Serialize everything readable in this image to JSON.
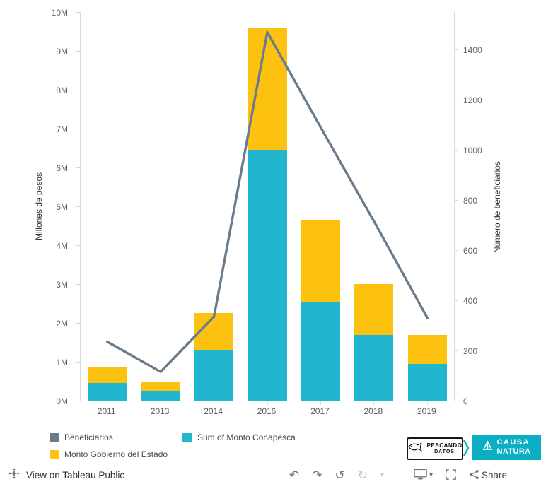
{
  "colors": {
    "bar_conapesca": "#20B6CE",
    "bar_estado": "#FDC110",
    "line_beneficiarios": "#6A7B8C",
    "causa_natura_teal": "#0BAFC4",
    "axis_line": "#d9d9d9"
  },
  "chart_data": {
    "type": "combo",
    "categories": [
      "2011",
      "2013",
      "2014",
      "2016",
      "2017",
      "2018",
      "2019"
    ],
    "series": [
      {
        "name": "Sum of Monto Conapesca",
        "type": "bar",
        "stacked": true,
        "axis": "left",
        "color": "#20B6CE",
        "values_millions": [
          0.45,
          0.25,
          1.3,
          6.45,
          2.55,
          1.7,
          0.95
        ]
      },
      {
        "name": "Monto Gobierno del Estado",
        "type": "bar",
        "stacked": true,
        "axis": "left",
        "color": "#FDC110",
        "values_millions": [
          0.4,
          0.25,
          0.95,
          3.15,
          2.1,
          1.3,
          0.75
        ]
      },
      {
        "name": "Beneficiarios",
        "type": "line",
        "axis": "right",
        "color": "#6A7B8C",
        "values": [
          235,
          115,
          335,
          1470,
          1090,
          715,
          330
        ]
      }
    ],
    "left_axis": {
      "title": "Millones de pesos",
      "min": 0,
      "max": 10,
      "tick_labels": [
        "0M",
        "1M",
        "2M",
        "3M",
        "4M",
        "5M",
        "6M",
        "7M",
        "8M",
        "9M",
        "10M"
      ]
    },
    "right_axis": {
      "title": "Número de beneficiarios",
      "min": 0,
      "max": 1400,
      "tick_step": 200,
      "plot_max": 1550,
      "tick_labels": [
        "0",
        "200",
        "400",
        "600",
        "800",
        "1000",
        "1200",
        "1400"
      ]
    },
    "grid": false,
    "legend_position": "bottom-left"
  },
  "legend": {
    "items": [
      {
        "label": "Beneficiarios",
        "color": "#6A7B8C"
      },
      {
        "label": "Sum of Monto Conapesca",
        "color": "#20B6CE"
      },
      {
        "label": "Monto Gobierno del Estado",
        "color": "#FDC110"
      }
    ]
  },
  "logos": {
    "pescando_datos": {
      "line1": "PESCANDO",
      "line2": "DATOS"
    },
    "causa_natura": {
      "line1": "CAUSA",
      "line2": "NATURA"
    }
  },
  "toolbar": {
    "view_label": "View on Tableau Public",
    "share_label": "Share",
    "icons": {
      "undo": "↶",
      "redo": "↷",
      "revert": "↺",
      "refresh": "↻",
      "caret_down": "▾"
    }
  }
}
